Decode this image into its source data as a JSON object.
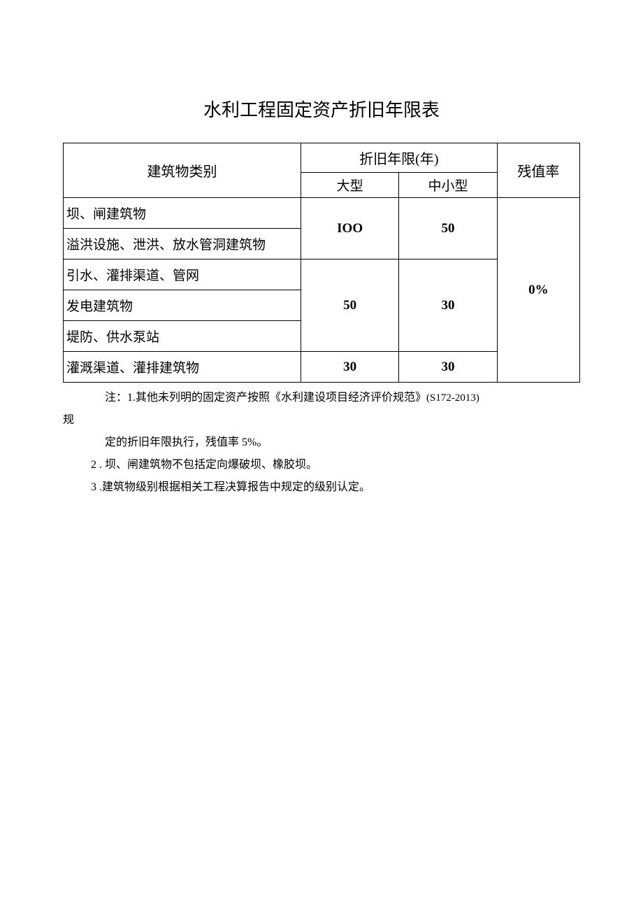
{
  "title": "水利工程固定资产折旧年限表",
  "table": {
    "headers": {
      "category": "建筑物类别",
      "years": "折旧年限(年)",
      "large": "大型",
      "small": "中小型",
      "residual": "残值率"
    },
    "rows": {
      "r1": "坝、闸建筑物",
      "r2": "溢洪设施、泄洪、放水管洞建筑物",
      "r3": "引水、灌排渠道、管网",
      "r4": "发电建筑物",
      "r5": "堤防、供水泵站",
      "r6": "灌溉渠道、灌排建筑物"
    },
    "values": {
      "g1_large": "IOO",
      "g1_small": "50",
      "g2_large": "50",
      "g2_small": "30",
      "g3_large": "30",
      "g3_small": "30",
      "residual": "0%"
    }
  },
  "notes": {
    "n1a": "注：1.其他未列明的固定资产按照《水利建设项目经济评价规范》",
    "n1ref": "(S172-2013)",
    "n1b": "规",
    "n1c": "定的折旧年限执行，残值率 5%。",
    "n2": "2 . 坝、闸建筑物不包括定向爆破坝、橡胶坝。",
    "n3": "3 .建筑物级别根据相关工程决算报告中规定的级别认定。"
  }
}
